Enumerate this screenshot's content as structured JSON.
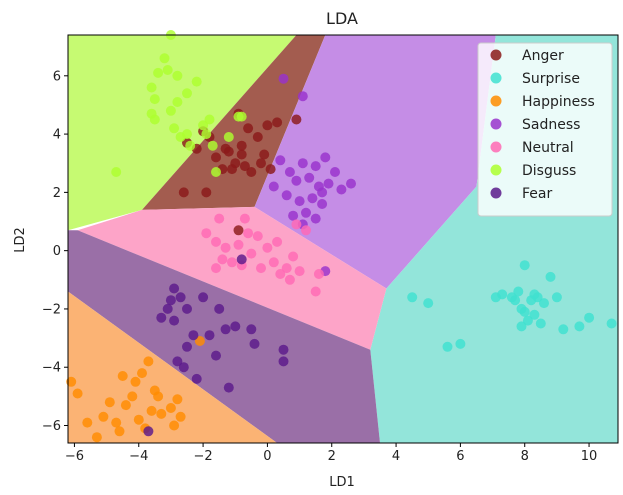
{
  "chart_data": {
    "type": "scatter",
    "title": "LDA",
    "xlabel": "LD1",
    "ylabel": "LD2",
    "xlim": [
      -6.2,
      10.9
    ],
    "ylim": [
      -6.6,
      7.4
    ],
    "xticks": [
      -6,
      -4,
      -2,
      0,
      2,
      4,
      6,
      8,
      10
    ],
    "yticks": [
      -6,
      -4,
      -2,
      0,
      2,
      4,
      6
    ],
    "grid": false,
    "legend_position": "top-right",
    "regions": [
      {
        "class": "Disguss",
        "color": "#c6fa72",
        "polygon": [
          [
            -6.2,
            7.4
          ],
          [
            0.9,
            7.4
          ],
          [
            -3.9,
            1.4
          ],
          [
            -6.2,
            0.7
          ]
        ]
      },
      {
        "class": "Anger",
        "color": "#a35c4f",
        "polygon": [
          [
            0.9,
            7.4
          ],
          [
            1.8,
            7.4
          ],
          [
            -0.4,
            1.5
          ],
          [
            -3.9,
            1.4
          ]
        ]
      },
      {
        "class": "Sadness",
        "color": "#c58de6",
        "polygon": [
          [
            1.8,
            7.4
          ],
          [
            7.1,
            7.4
          ],
          [
            6.5,
            2.2
          ],
          [
            3.7,
            -1.3
          ],
          [
            -0.4,
            1.5
          ]
        ]
      },
      {
        "class": "Surprise",
        "color": "#93e5da",
        "polygon": [
          [
            7.1,
            7.4
          ],
          [
            10.9,
            7.4
          ],
          [
            10.9,
            -6.6
          ],
          [
            3.5,
            -6.6
          ],
          [
            3.2,
            -3.4
          ],
          [
            3.7,
            -1.3
          ],
          [
            6.5,
            2.2
          ]
        ]
      },
      {
        "class": "Neutral",
        "color": "#fda4c8",
        "polygon": [
          [
            -3.9,
            1.4
          ],
          [
            -0.4,
            1.5
          ],
          [
            3.7,
            -1.3
          ],
          [
            3.2,
            -3.4
          ],
          [
            -5.9,
            0.7
          ]
        ]
      },
      {
        "class": "Fear",
        "color": "#9a6fa7",
        "polygon": [
          [
            -6.2,
            0.7
          ],
          [
            -5.9,
            0.7
          ],
          [
            3.2,
            -3.4
          ],
          [
            3.5,
            -6.6
          ],
          [
            0.3,
            -6.6
          ],
          [
            -6.2,
            -1.4
          ]
        ]
      },
      {
        "class": "Happiness",
        "color": "#fbb374",
        "polygon": [
          [
            -6.2,
            -1.4
          ],
          [
            0.3,
            -6.6
          ],
          [
            -6.2,
            -6.6
          ]
        ]
      }
    ],
    "series": [
      {
        "name": "Anger",
        "color": "#8b1a1a",
        "points": [
          [
            -2.5,
            3.7
          ],
          [
            -2.2,
            3.5
          ],
          [
            -2.0,
            4.1
          ],
          [
            -1.8,
            3.9
          ],
          [
            -1.6,
            3.2
          ],
          [
            -1.4,
            2.8
          ],
          [
            -1.2,
            3.4
          ],
          [
            -1.0,
            3.0
          ],
          [
            -0.8,
            3.3
          ],
          [
            -0.9,
            4.7
          ],
          [
            -0.6,
            4.2
          ],
          [
            -0.3,
            3.9
          ],
          [
            0.0,
            4.3
          ],
          [
            0.3,
            4.4
          ],
          [
            0.9,
            4.5
          ],
          [
            -0.1,
            3.3
          ],
          [
            -0.5,
            2.7
          ],
          [
            -0.8,
            3.6
          ],
          [
            -1.1,
            2.8
          ],
          [
            -2.6,
            2.0
          ],
          [
            -1.9,
            2.0
          ],
          [
            -1.3,
            3.5
          ],
          [
            -0.7,
            2.9
          ],
          [
            0.1,
            2.8
          ],
          [
            -0.2,
            3.0
          ],
          [
            -0.9,
            0.7
          ]
        ]
      },
      {
        "name": "Surprise",
        "color": "#40e0d0",
        "points": [
          [
            4.5,
            -1.6
          ],
          [
            5.0,
            -1.8
          ],
          [
            5.6,
            -3.3
          ],
          [
            6.0,
            -3.2
          ],
          [
            7.1,
            -1.6
          ],
          [
            7.3,
            -1.5
          ],
          [
            7.6,
            -1.6
          ],
          [
            7.8,
            -1.4
          ],
          [
            7.9,
            -2.0
          ],
          [
            8.0,
            -0.5
          ],
          [
            8.2,
            -1.7
          ],
          [
            8.3,
            -2.2
          ],
          [
            8.4,
            -1.6
          ],
          [
            8.6,
            -1.8
          ],
          [
            8.8,
            -0.9
          ],
          [
            9.0,
            -1.6
          ],
          [
            9.2,
            -2.7
          ],
          [
            9.7,
            -2.6
          ],
          [
            10.0,
            -2.3
          ],
          [
            10.7,
            -2.5
          ],
          [
            7.9,
            -2.6
          ],
          [
            8.1,
            -2.4
          ],
          [
            8.3,
            -1.5
          ],
          [
            8.0,
            -2.1
          ],
          [
            8.5,
            -2.5
          ],
          [
            7.7,
            -1.7
          ]
        ]
      },
      {
        "name": "Happiness",
        "color": "#ff8c00",
        "points": [
          [
            -6.1,
            -4.5
          ],
          [
            -5.9,
            -4.9
          ],
          [
            -5.6,
            -5.9
          ],
          [
            -5.3,
            -6.4
          ],
          [
            -5.1,
            -5.7
          ],
          [
            -4.9,
            -5.2
          ],
          [
            -4.7,
            -5.9
          ],
          [
            -4.5,
            -4.3
          ],
          [
            -4.4,
            -5.3
          ],
          [
            -4.2,
            -5.0
          ],
          [
            -4.0,
            -5.8
          ],
          [
            -3.9,
            -4.2
          ],
          [
            -3.8,
            -6.1
          ],
          [
            -3.6,
            -5.5
          ],
          [
            -3.4,
            -5.0
          ],
          [
            -3.3,
            -5.6
          ],
          [
            -3.0,
            -5.4
          ],
          [
            -2.9,
            -6.0
          ],
          [
            -2.8,
            -5.1
          ],
          [
            -3.5,
            -4.8
          ],
          [
            -4.1,
            -4.5
          ],
          [
            -3.7,
            -3.8
          ],
          [
            -2.7,
            -5.7
          ],
          [
            -4.6,
            -6.2
          ],
          [
            -2.1,
            -3.1
          ]
        ]
      },
      {
        "name": "Sadness",
        "color": "#9932cc",
        "points": [
          [
            0.4,
            3.1
          ],
          [
            0.7,
            2.7
          ],
          [
            0.9,
            2.4
          ],
          [
            1.1,
            3.0
          ],
          [
            1.3,
            2.5
          ],
          [
            1.4,
            1.8
          ],
          [
            1.5,
            2.9
          ],
          [
            1.6,
            2.2
          ],
          [
            1.7,
            1.6
          ],
          [
            1.8,
            3.2
          ],
          [
            1.9,
            2.3
          ],
          [
            2.1,
            2.7
          ],
          [
            2.3,
            2.1
          ],
          [
            2.6,
            2.3
          ],
          [
            1.0,
            1.7
          ],
          [
            0.8,
            1.2
          ],
          [
            1.2,
            1.3
          ],
          [
            0.2,
            2.2
          ],
          [
            0.6,
            1.9
          ],
          [
            1.5,
            1.1
          ],
          [
            1.1,
            0.9
          ],
          [
            0.5,
            5.9
          ],
          [
            1.1,
            5.3
          ],
          [
            1.7,
            2.0
          ],
          [
            1.8,
            -0.7
          ]
        ]
      },
      {
        "name": "Neutral",
        "color": "#ff69b4",
        "points": [
          [
            -1.9,
            0.6
          ],
          [
            -1.6,
            0.3
          ],
          [
            -1.4,
            -0.3
          ],
          [
            -1.3,
            0.1
          ],
          [
            -1.1,
            -0.4
          ],
          [
            -0.9,
            0.2
          ],
          [
            -0.8,
            -0.5
          ],
          [
            -0.6,
            0.6
          ],
          [
            -0.5,
            -0.1
          ],
          [
            -0.3,
            0.5
          ],
          [
            -0.2,
            -0.6
          ],
          [
            0.0,
            0.1
          ],
          [
            0.2,
            -0.4
          ],
          [
            0.4,
            -0.8
          ],
          [
            0.6,
            -0.6
          ],
          [
            0.8,
            -0.2
          ],
          [
            1.0,
            -0.7
          ],
          [
            1.2,
            0.7
          ],
          [
            1.5,
            -1.4
          ],
          [
            0.3,
            0.3
          ],
          [
            -0.7,
            1.1
          ],
          [
            -1.6,
            -0.6
          ],
          [
            0.7,
            -1.0
          ],
          [
            -1.5,
            1.1
          ],
          [
            0.9,
            0.9
          ],
          [
            1.6,
            -0.8
          ]
        ]
      },
      {
        "name": "Disguss",
        "color": "#adff2f",
        "points": [
          [
            -4.7,
            2.7
          ],
          [
            -3.6,
            5.6
          ],
          [
            -3.6,
            4.7
          ],
          [
            -3.5,
            5.2
          ],
          [
            -3.4,
            6.1
          ],
          [
            -3.2,
            6.6
          ],
          [
            -3.1,
            6.2
          ],
          [
            -3.0,
            4.8
          ],
          [
            -2.9,
            4.2
          ],
          [
            -2.8,
            5.1
          ],
          [
            -2.7,
            3.9
          ],
          [
            -2.5,
            5.4
          ],
          [
            -2.4,
            3.6
          ],
          [
            -2.2,
            5.8
          ],
          [
            -2.0,
            4.3
          ],
          [
            -1.8,
            4.5
          ],
          [
            -1.7,
            3.6
          ],
          [
            -1.6,
            2.7
          ],
          [
            -1.2,
            3.9
          ],
          [
            -0.9,
            4.6
          ],
          [
            -3.5,
            4.5
          ],
          [
            -3.0,
            7.4
          ],
          [
            -2.8,
            6.0
          ],
          [
            -2.5,
            4.0
          ],
          [
            -1.9,
            4.0
          ],
          [
            -0.8,
            4.6
          ]
        ]
      },
      {
        "name": "Fear",
        "color": "#5b1a8b",
        "points": [
          [
            -3.3,
            -2.3
          ],
          [
            -3.0,
            -1.7
          ],
          [
            -2.9,
            -2.4
          ],
          [
            -2.8,
            -3.8
          ],
          [
            -2.7,
            -1.6
          ],
          [
            -2.5,
            -2.0
          ],
          [
            -2.3,
            -2.9
          ],
          [
            -2.2,
            -4.4
          ],
          [
            -2.0,
            -1.6
          ],
          [
            -1.8,
            -2.9
          ],
          [
            -1.6,
            -3.6
          ],
          [
            -1.5,
            -2.0
          ],
          [
            -1.3,
            -2.7
          ],
          [
            -1.2,
            -4.7
          ],
          [
            -1.0,
            -2.6
          ],
          [
            -0.8,
            -0.3
          ],
          [
            -0.5,
            -2.7
          ],
          [
            -0.4,
            -3.2
          ],
          [
            -3.7,
            -6.2
          ],
          [
            -2.5,
            -3.3
          ],
          [
            -3.1,
            -2.0
          ],
          [
            0.5,
            -3.4
          ],
          [
            0.5,
            -3.8
          ],
          [
            -2.9,
            -1.3
          ],
          [
            -2.6,
            -4.0
          ]
        ]
      }
    ]
  }
}
